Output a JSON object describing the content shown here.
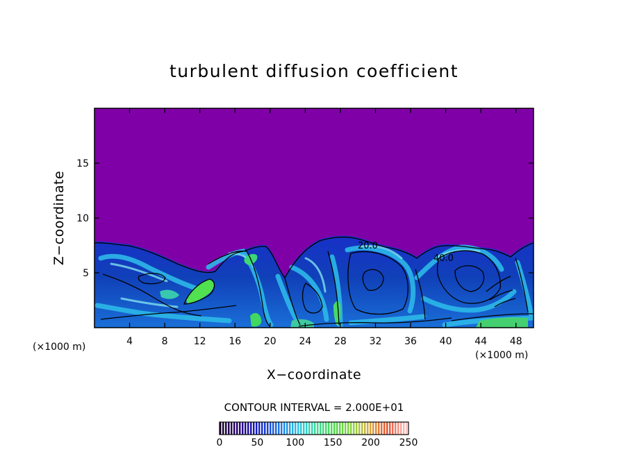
{
  "chart_data": {
    "type": "heatmap",
    "title": "turbulent diffusion coefficient",
    "xlabel": "X−coordinate",
    "ylabel": "Z−coordinate",
    "x_unit": "(×1000 m)",
    "y_unit": "(×1000 m)",
    "xlim": [
      0,
      50
    ],
    "ylim": [
      0,
      20
    ],
    "x_ticks": [
      4,
      8,
      12,
      16,
      20,
      24,
      28,
      32,
      36,
      40,
      44,
      48
    ],
    "y_ticks": [
      5,
      10,
      15
    ],
    "contour_interval_text": "CONTOUR INTERVAL = 2.000E+01",
    "contour_labels": [
      {
        "text": "20.0",
        "x": 30.3,
        "z": 7.6
      },
      {
        "text": "40.0",
        "x": 39.1,
        "z": 6.5
      }
    ],
    "colorbar": {
      "min": 0,
      "max": 250,
      "tick_values": [
        0,
        50,
        100,
        150,
        200,
        250
      ],
      "tick_labels": [
        "0",
        "50",
        "100",
        "150",
        "200",
        "250"
      ]
    },
    "colors": {
      "background_field": "#8000a8",
      "low": "#1020a0",
      "mid": "#20b0e0",
      "high": "#50e050"
    }
  }
}
